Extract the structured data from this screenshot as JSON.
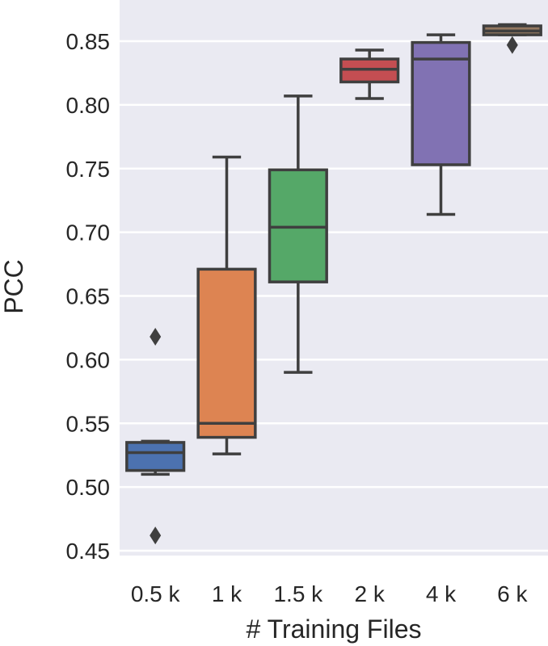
{
  "chart_data": {
    "type": "box",
    "xlabel": "# Training Files",
    "ylabel": "PCC",
    "ylim": [
      0.44,
      0.868
    ],
    "yticks": [
      0.45,
      0.5,
      0.55,
      0.6,
      0.65,
      0.7,
      0.75,
      0.8,
      0.85
    ],
    "ytick_labels": [
      "0.45",
      "0.50",
      "0.55",
      "0.60",
      "0.65",
      "0.70",
      "0.75",
      "0.80",
      "0.85"
    ],
    "grid": true,
    "legend": "none",
    "background_color": "#eaeaf2",
    "categories": [
      "0.5 k",
      "1 k",
      "1.5 k",
      "2 k",
      "4 k",
      "6 k"
    ],
    "boxes": [
      {
        "label": "0.5 k",
        "color": "#4c72b0",
        "whisker_low": 0.51,
        "q1": 0.513,
        "median": 0.527,
        "q3": 0.535,
        "whisker_high": 0.536,
        "outliers": [
          0.618,
          0.462
        ]
      },
      {
        "label": "1 k",
        "color": "#dd8452",
        "whisker_low": 0.526,
        "q1": 0.539,
        "median": 0.55,
        "q3": 0.671,
        "whisker_high": 0.759,
        "outliers": []
      },
      {
        "label": "1.5 k",
        "color": "#55a868",
        "whisker_low": 0.59,
        "q1": 0.661,
        "median": 0.704,
        "q3": 0.749,
        "whisker_high": 0.807,
        "outliers": []
      },
      {
        "label": "2 k",
        "color": "#c44e52",
        "whisker_low": 0.805,
        "q1": 0.818,
        "median": 0.828,
        "q3": 0.836,
        "whisker_high": 0.843,
        "outliers": []
      },
      {
        "label": "4 k",
        "color": "#8172b3",
        "whisker_low": 0.714,
        "q1": 0.753,
        "median": 0.836,
        "q3": 0.849,
        "whisker_high": 0.855,
        "outliers": []
      },
      {
        "label": "6 k",
        "color": "#937860",
        "whisker_low": 0.855,
        "q1": 0.855,
        "median": 0.858,
        "q3": 0.862,
        "whisker_high": 0.863,
        "outliers": [
          0.847
        ]
      }
    ]
  }
}
